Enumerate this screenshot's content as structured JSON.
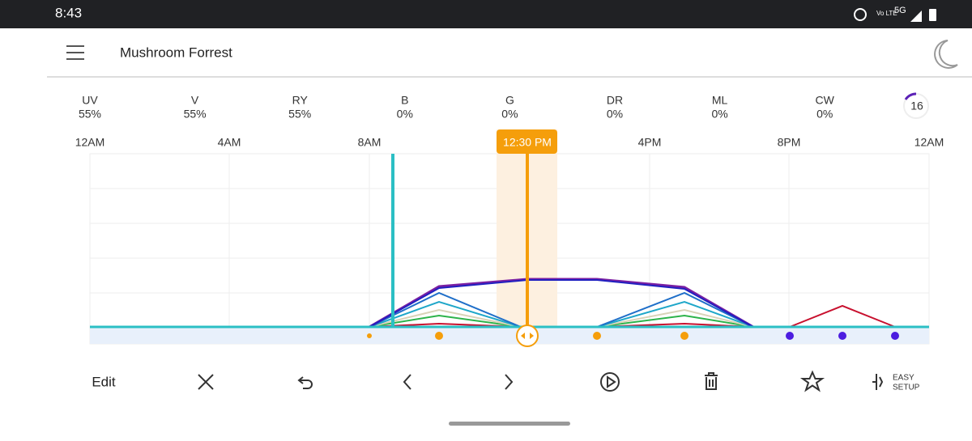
{
  "status_bar": {
    "time": "8:43",
    "network": "5G",
    "volte": "Vo LTE"
  },
  "header": {
    "title": "Mushroom Forrest"
  },
  "channels": [
    {
      "name": "UV",
      "level": "55%"
    },
    {
      "name": "V",
      "level": "55%"
    },
    {
      "name": "RY",
      "level": "55%"
    },
    {
      "name": "B",
      "level": "0%"
    },
    {
      "name": "G",
      "level": "0%"
    },
    {
      "name": "DR",
      "level": "0%"
    },
    {
      "name": "ML",
      "level": "0%"
    },
    {
      "name": "CW",
      "level": "0%"
    }
  ],
  "badge": "16",
  "timeline": {
    "labels": [
      "12AM",
      "4AM",
      "8AM",
      "4PM",
      "8PM",
      "12AM"
    ],
    "cursor": "12:30 PM"
  },
  "toolbar": {
    "edit": "Edit",
    "easy_setup": [
      "EASY",
      "SETUP"
    ]
  }
}
